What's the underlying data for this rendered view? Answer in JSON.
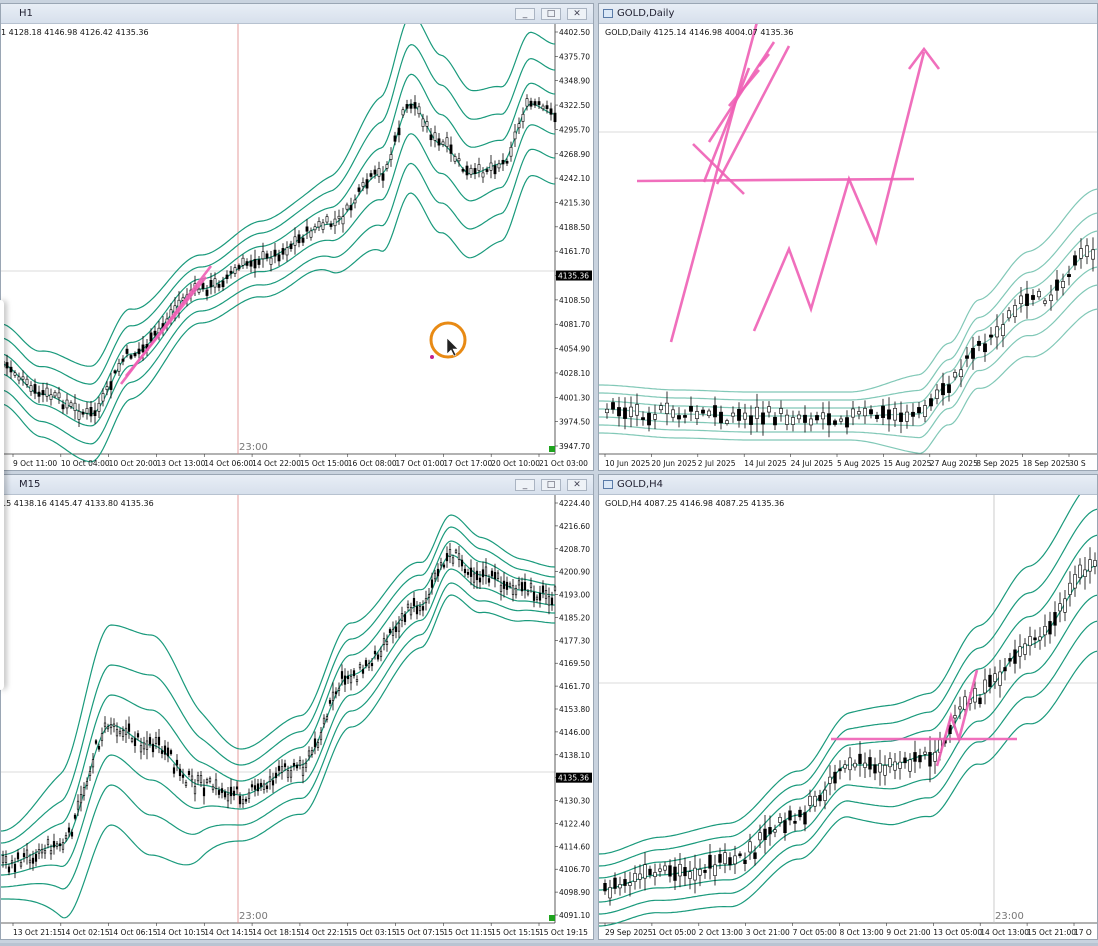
{
  "windows": {
    "tl": {
      "title": "H1",
      "info": "1  4128.18 4146.98 4126.42 4135.36",
      "marker": "23:00",
      "current": "4135.36",
      "prices": [
        "4402.50",
        "4375.70",
        "4348.90",
        "4322.50",
        "4295.70",
        "4268.90",
        "4242.10",
        "4215.30",
        "4188.50",
        "4161.70",
        "4135.36",
        "4108.50",
        "4081.70",
        "4054.90",
        "4028.10",
        "4001.30",
        "3974.50",
        "3947.70"
      ],
      "times": [
        "9 Oct 11:00",
        "10 Oct 04:00",
        "10 Oct 20:00",
        "13 Oct 13:00",
        "14 Oct 06:00",
        "14 Oct 22:00",
        "15 Oct 15:00",
        "16 Oct 08:00",
        "17 Oct 01:00",
        "17 Oct 17:00",
        "20 Oct 10:00",
        "21 Oct 03:00"
      ]
    },
    "tr": {
      "title": "GOLD,Daily",
      "info": "GOLD,Daily  4125.14 4146.98 4004.07 4135.36",
      "times": [
        "10 Jun 2025",
        "20 Jun 2025",
        "2 Jul 2025",
        "14 Jul 2025",
        "24 Jul 2025",
        "5 Aug 2025",
        "15 Aug 2025",
        "27 Aug 2025",
        "8 Sep 2025",
        "18 Sep 2025",
        "30 S"
      ]
    },
    "bl": {
      "title": "M15",
      "info": "15  4138.16 4145.47 4133.80 4135.36",
      "marker": "23:00",
      "current": "4135.36",
      "prices": [
        "4224.40",
        "4216.60",
        "4208.70",
        "4200.90",
        "4193.00",
        "4185.20",
        "4177.30",
        "4169.50",
        "4161.70",
        "4153.80",
        "4146.00",
        "4138.10",
        "4135.36",
        "4130.30",
        "4122.40",
        "4114.60",
        "4106.70",
        "4098.90",
        "4091.10"
      ],
      "times": [
        "13 Oct 21:15",
        "14 Oct 02:15",
        "14 Oct 06:15",
        "14 Oct 10:15",
        "14 Oct 14:15",
        "14 Oct 18:15",
        "14 Oct 22:15",
        "15 Oct 03:15",
        "15 Oct 07:15",
        "15 Oct 11:15",
        "15 Oct 15:15",
        "15 Oct 19:15"
      ]
    },
    "br": {
      "title": "GOLD,H4",
      "info": "GOLD,H4  4087.25 4146.98 4087.25 4135.36",
      "marker": "23:00",
      "times": [
        "29 Sep 2025",
        "1 Oct 05:00",
        "2 Oct 13:00",
        "3 Oct 21:00",
        "7 Oct 05:00",
        "8 Oct 13:00",
        "9 Oct 21:00",
        "13 Oct 05:00",
        "14 Oct 13:00",
        "15 Oct 21:00",
        "17 O"
      ]
    }
  },
  "controls": {
    "minimize": "_",
    "restore": "□",
    "close": "✕"
  },
  "icons": {
    "window": "chart-window-icon",
    "cursor": "arrow-cursor-icon"
  },
  "colors": {
    "band": "#1a9a7c",
    "drawing": "#ee5fb5",
    "bull": "#ffffff",
    "bear": "#000000",
    "grid": "#cfcfcf",
    "vline": "#e08585"
  }
}
